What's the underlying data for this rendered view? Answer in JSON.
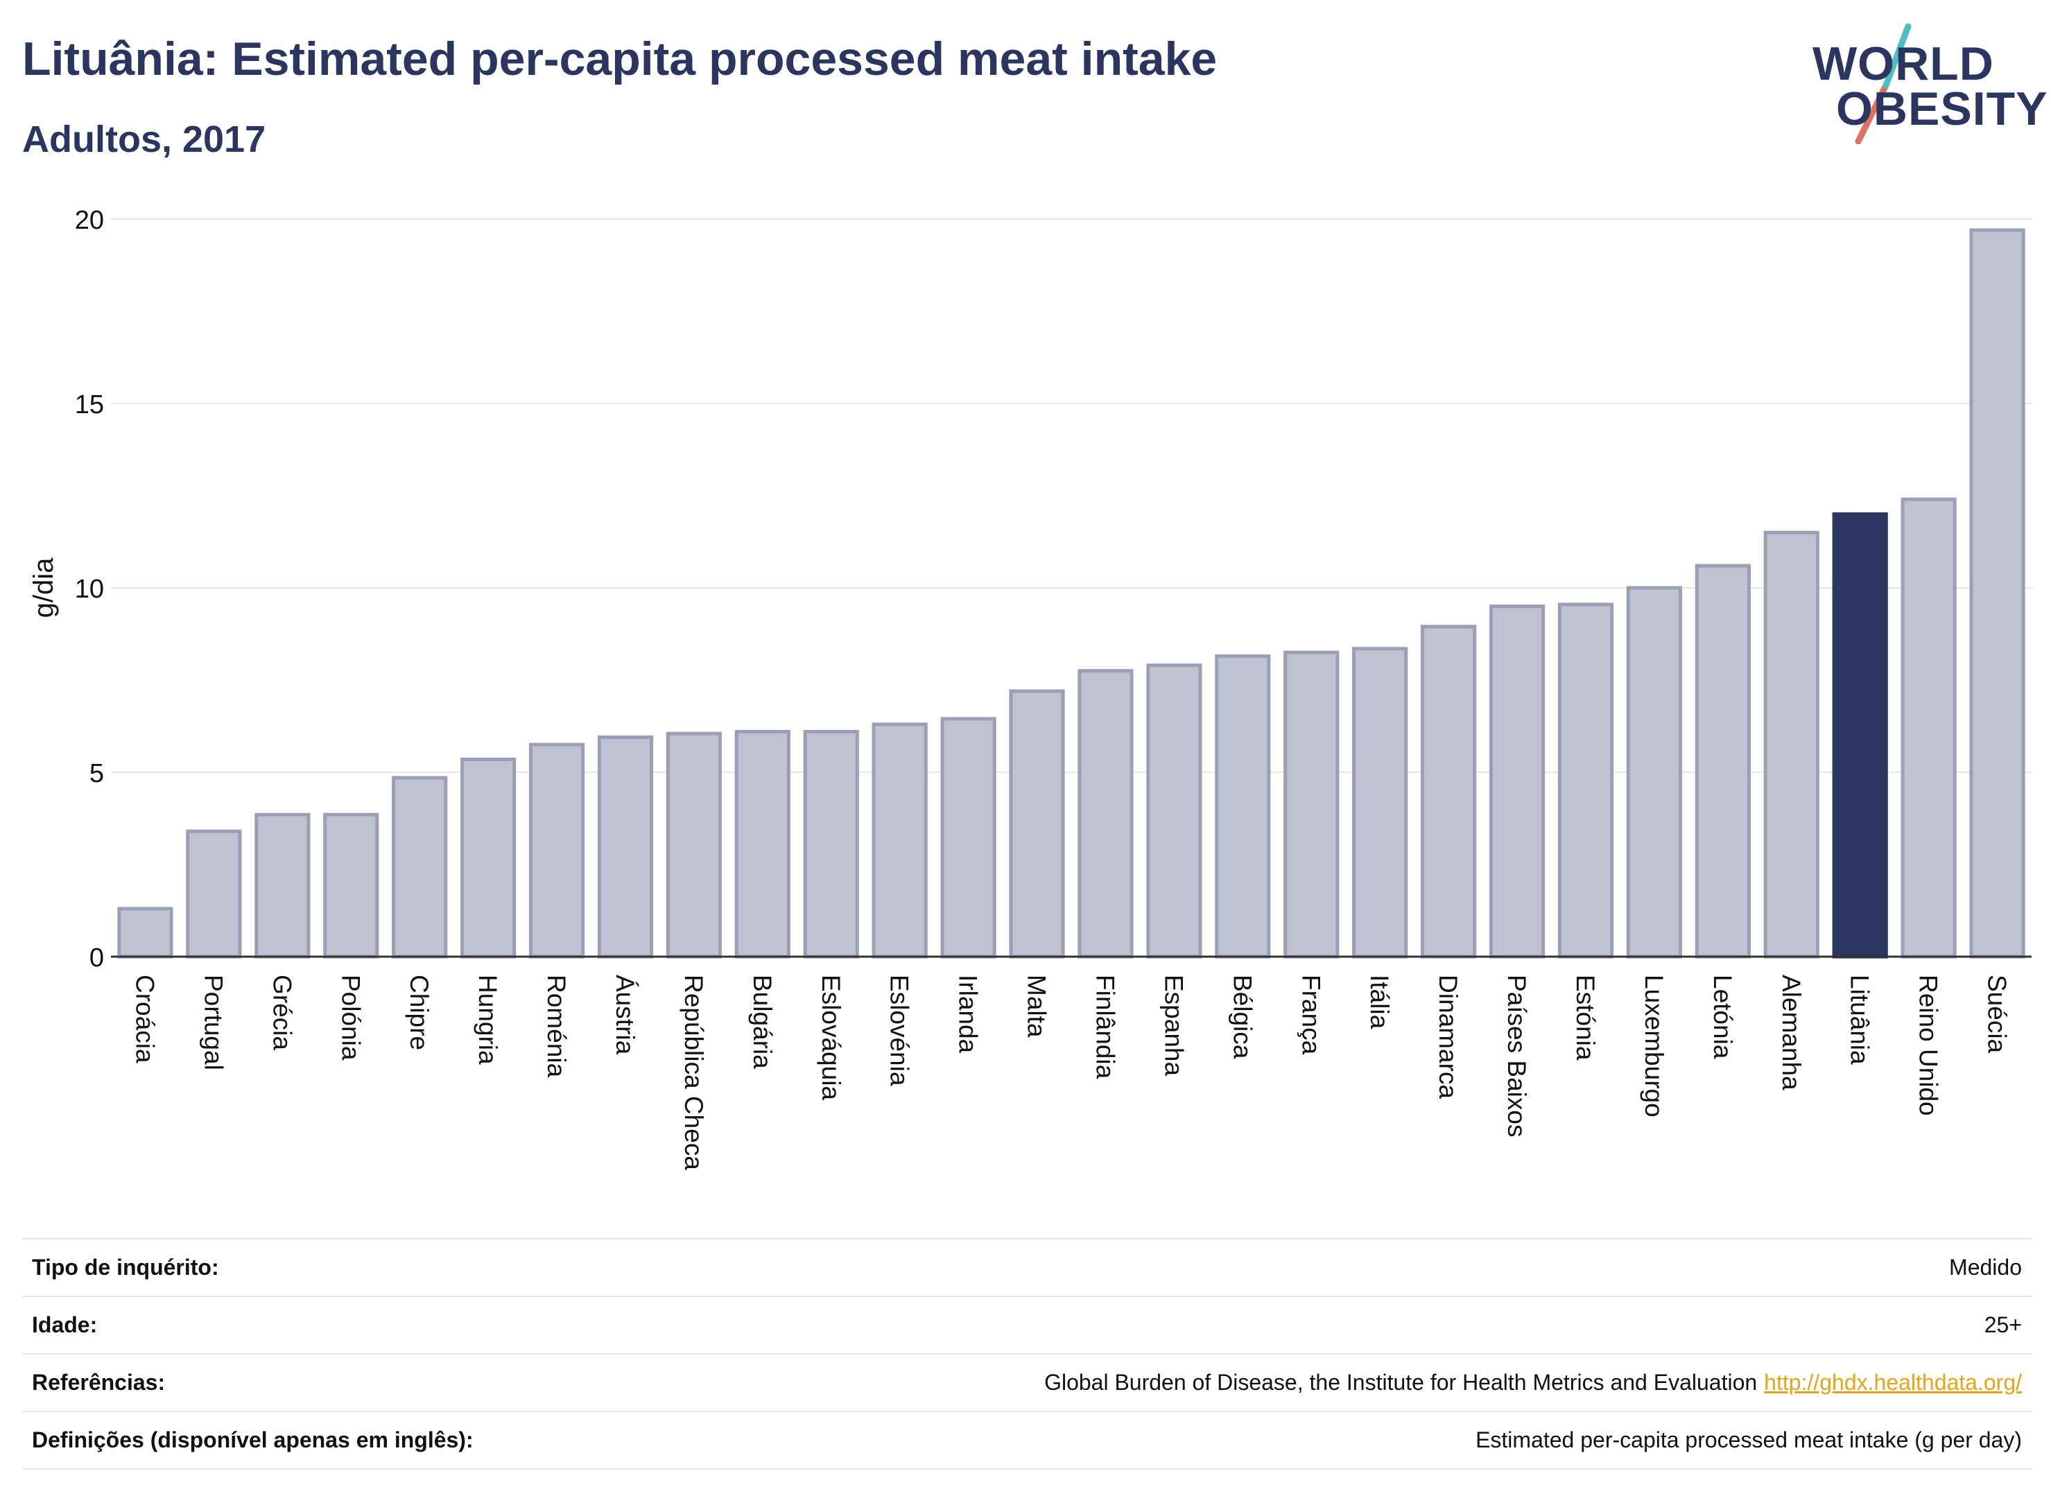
{
  "title": "Lituânia: Estimated per-capita processed meat intake",
  "subtitle": "Adultos, 2017",
  "logo": {
    "line1": "WORLD",
    "line2": "OBESITY"
  },
  "colors": {
    "bar": "#bfc2d0",
    "bar_border": "#9a9fb6",
    "highlight": "#2a3560",
    "accent_teal": "#4bbfc1",
    "accent_coral": "#e0705f",
    "link": "#e8a317"
  },
  "chart_data": {
    "type": "bar",
    "ylabel": "g/dia",
    "ylim": [
      0,
      20
    ],
    "yticks": [
      0,
      5,
      10,
      15,
      20
    ],
    "grid": true,
    "highlight": "Lituânia",
    "categories": [
      "Croácia",
      "Portugal",
      "Grécia",
      "Polónia",
      "Chipre",
      "Hungria",
      "Roménia",
      "Áustria",
      "República Checa",
      "Bulgária",
      "Eslováquia",
      "Eslovénia",
      "Irlanda",
      "Malta",
      "Finlândia",
      "Espanha",
      "Bélgica",
      "França",
      "Itália",
      "Dinamarca",
      "Países Baixos",
      "Estónia",
      "Luxemburgo",
      "Letónia",
      "Alemanha",
      "Lituânia",
      "Reino Unido",
      "Suécia"
    ],
    "values": [
      1.3,
      3.4,
      3.85,
      3.85,
      4.85,
      5.35,
      5.75,
      5.95,
      6.05,
      6.1,
      6.1,
      6.3,
      6.45,
      7.2,
      7.75,
      7.9,
      8.15,
      8.25,
      8.35,
      8.95,
      9.5,
      9.55,
      10.0,
      10.6,
      11.5,
      12.0,
      12.4,
      19.7
    ]
  },
  "meta": [
    {
      "label": "Tipo de inquérito:",
      "value": "Medido",
      "link": ""
    },
    {
      "label": "Idade:",
      "value": "25+",
      "link": ""
    },
    {
      "label": "Referências:",
      "value": "Global Burden of Disease, the Institute for Health Metrics and Evaluation",
      "link": "http://ghdx.healthdata.org/"
    },
    {
      "label": "Definições (disponível apenas em inglês):",
      "value": "Estimated per-capita processed meat intake (g per day)",
      "link": ""
    }
  ]
}
